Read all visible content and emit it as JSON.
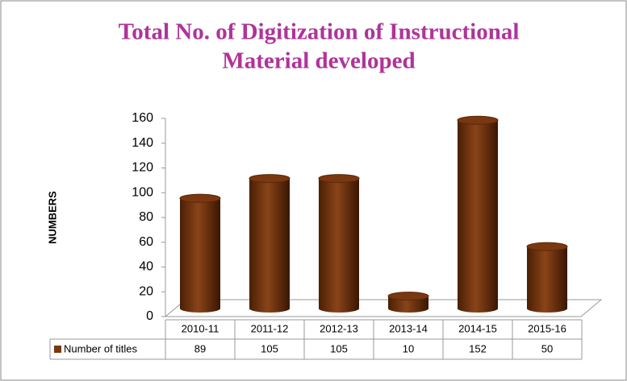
{
  "chart_data": {
    "type": "bar",
    "title": [
      "Total No. of Digitization of  Instructional",
      "Material developed"
    ],
    "y_label": "NUMBERS",
    "categories": [
      "2010-11",
      "2011-12",
      "2012-13",
      "2013-14",
      "2014-15",
      "2015-16"
    ],
    "series": [
      {
        "name": "Number of titles",
        "color": "#7a3810",
        "values": [
          89,
          105,
          105,
          10,
          152,
          50
        ]
      }
    ],
    "ylim": [
      0,
      160
    ],
    "yticks": [
      0,
      20,
      40,
      60,
      80,
      100,
      120,
      140,
      160
    ],
    "data_table": true
  }
}
